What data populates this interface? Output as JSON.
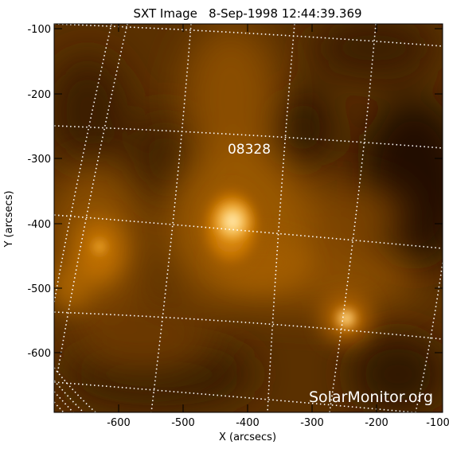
{
  "title": "SXT Image   8-Sep-1998 12:44:39.369",
  "xlabel": "X (arcsecs)",
  "ylabel": "Y (arcsecs)",
  "x_ticks": [
    "-600",
    "-500",
    "-400",
    "-300",
    "-200",
    "-100"
  ],
  "y_ticks": [
    "-100",
    "-200",
    "-300",
    "-400",
    "-500",
    "-600"
  ],
  "x_tick_values": [
    -600,
    -500,
    -400,
    -300,
    -200,
    -100
  ],
  "y_tick_values": [
    -100,
    -200,
    -300,
    -400,
    -500,
    -600
  ],
  "x_range": [
    -700,
    -100
  ],
  "y_range": [
    -695,
    -88
  ],
  "region_label": "08328",
  "region_pos_arcsec": [
    -390,
    -290
  ],
  "watermark": "SolarMonitor.org",
  "colors": {
    "bg": "#ffffff",
    "frame": "#000000",
    "grid": "#ffffff",
    "dark": "#2a1300",
    "mid": "#8a4c00",
    "bright": "#ffe9a8"
  }
}
